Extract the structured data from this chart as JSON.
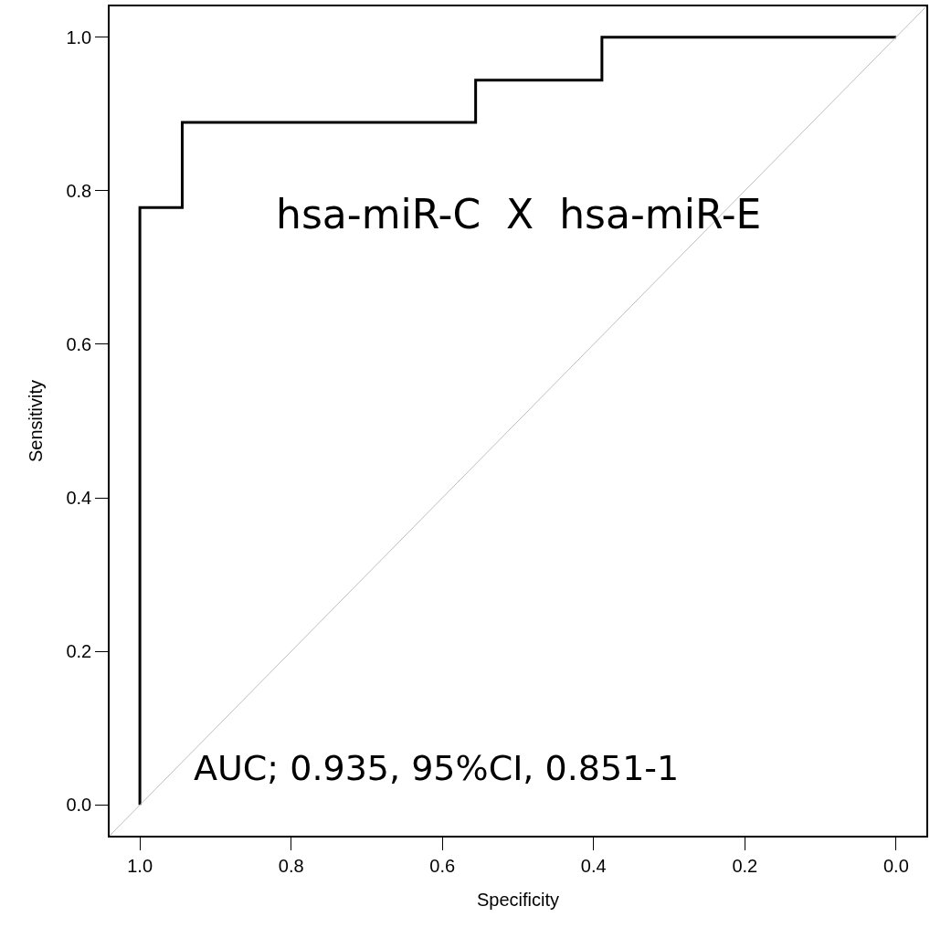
{
  "chart_data": {
    "type": "step",
    "xlabel": "Specificity",
    "ylabel": "Sensitivity",
    "annotations": [
      "hsa-miR-C  X  hsa-miR-E",
      "AUC; 0.935, 95%CI, 0.851-1"
    ],
    "series": [
      {
        "color": "#000000",
        "x": [
          1.0,
          1.0,
          0.944,
          0.556,
          0.389,
          0.0
        ],
        "values": [
          0.0,
          0.778,
          0.889,
          0.944,
          1.0,
          1.0
        ]
      },
      {
        "type": "line",
        "color": "#bebebe",
        "x": [
          1.04,
          -0.04
        ],
        "values": [
          -0.04,
          1.04
        ]
      }
    ],
    "xlim": [
      1.04,
      -0.04
    ],
    "ylim": [
      -0.04,
      1.04
    ],
    "xticks": [
      {
        "value": 1.0,
        "label": "1.0"
      },
      0.8,
      0.6,
      0.4,
      0.2,
      {
        "value": 0.0,
        "label": "0.0"
      }
    ],
    "yticks": [
      {
        "value": 0.0,
        "label": "0.0"
      },
      0.2,
      0.4,
      0.6,
      0.8,
      {
        "value": 1.0,
        "label": "1.0"
      }
    ],
    "marker": "none"
  }
}
